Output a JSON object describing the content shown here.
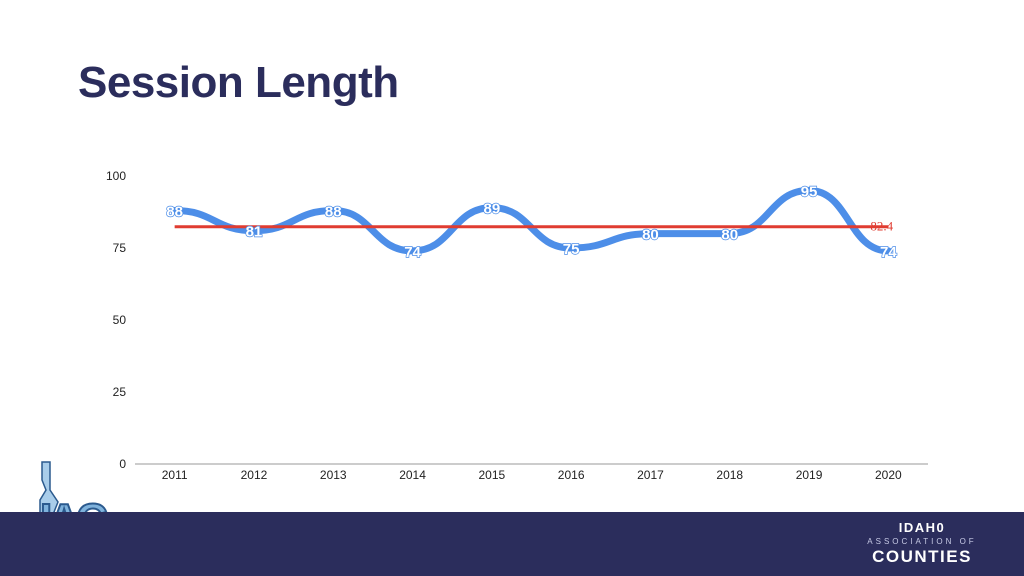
{
  "header": {
    "title": "Session Length"
  },
  "chart_data": {
    "type": "line",
    "categories": [
      "2011",
      "2012",
      "2013",
      "2014",
      "2015",
      "2016",
      "2017",
      "2018",
      "2019",
      "2020"
    ],
    "series": [
      {
        "values": [
          88,
          81,
          88,
          74,
          89,
          75,
          80,
          80,
          95,
          74
        ],
        "color": "#4d8ee8"
      }
    ],
    "reference_line": {
      "value": 82.4,
      "label": "82.4",
      "color": "#e03c31"
    },
    "ylim": [
      0,
      100
    ],
    "yticks": [
      0,
      25,
      50,
      75,
      100
    ],
    "title": "",
    "xlabel": "",
    "ylabel": "",
    "grid": false
  },
  "footer": {
    "logo_text": "IAC",
    "org_line1": "IDAH0",
    "org_line2": "ASSOCIATION OF",
    "org_line3": "COUNTIES",
    "bar_color": "#2b2d5c"
  }
}
